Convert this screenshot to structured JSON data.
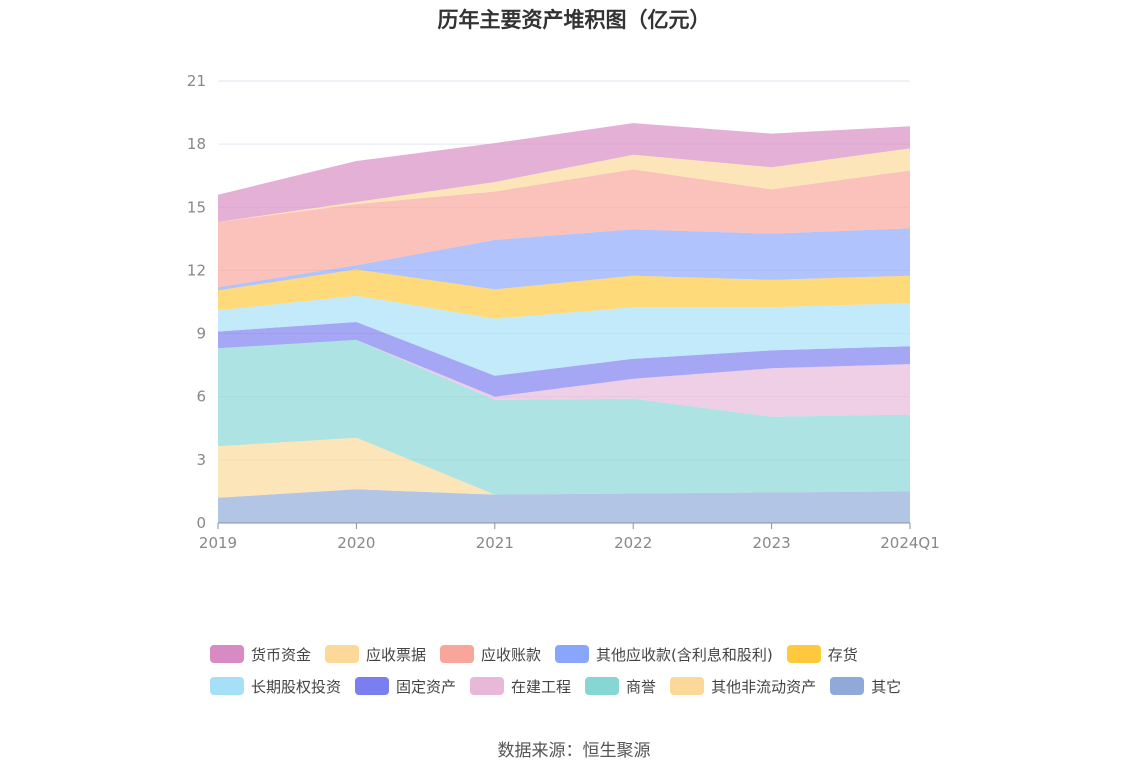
{
  "chart_data": {
    "type": "area",
    "stacked": true,
    "title": "历年主要资产堆积图（亿元）",
    "x": [
      "2019",
      "2020",
      "2021",
      "2022",
      "2023",
      "2024Q1"
    ],
    "yticks": [
      "0",
      "3",
      "6",
      "9",
      "12",
      "15",
      "18",
      "21"
    ],
    "ylim": [
      0,
      21
    ],
    "grid": true,
    "legend_position": "bottom",
    "series": [
      {
        "name": "其它",
        "color": "#8fa9d8",
        "values": [
          1.2,
          1.6,
          1.35,
          1.4,
          1.45,
          1.5
        ]
      },
      {
        "name": "其他非流动资产",
        "color": "#fcd999",
        "values": [
          2.45,
          2.45,
          0.0,
          0.0,
          0.0,
          0.0
        ]
      },
      {
        "name": "商誉",
        "color": "#86d6d4",
        "values": [
          4.65,
          4.65,
          4.5,
          4.5,
          3.6,
          3.65
        ]
      },
      {
        "name": "在建工程",
        "color": "#e8b8d8",
        "values": [
          0.0,
          0.0,
          0.15,
          0.95,
          2.3,
          2.4
        ]
      },
      {
        "name": "固定资产",
        "color": "#7b7ef0",
        "values": [
          0.8,
          0.85,
          1.0,
          0.95,
          0.85,
          0.85
        ]
      },
      {
        "name": "长期股权投资",
        "color": "#a5e0f7",
        "values": [
          1.0,
          1.25,
          2.7,
          2.45,
          2.05,
          2.05
        ]
      },
      {
        "name": "存货",
        "color": "#ffc83d",
        "values": [
          0.95,
          1.25,
          1.4,
          1.5,
          1.3,
          1.3
        ]
      },
      {
        "name": "其他应收款(含利息和股利)",
        "color": "#8aa6fb",
        "values": [
          0.15,
          0.2,
          2.35,
          2.2,
          2.2,
          2.25
        ]
      },
      {
        "name": "应收账款",
        "color": "#f8a59a",
        "values": [
          3.1,
          2.9,
          2.3,
          2.85,
          2.1,
          2.75
        ]
      },
      {
        "name": "应收票据",
        "color": "#fcd999",
        "values": [
          0.0,
          0.1,
          0.45,
          0.7,
          1.05,
          1.05
        ]
      },
      {
        "name": "货币资金",
        "color": "#d88bc2",
        "values": [
          1.3,
          1.95,
          1.85,
          1.5,
          1.6,
          1.05
        ]
      }
    ]
  },
  "legend_order": [
    "货币资金",
    "应收票据",
    "应收账款",
    "其他应收款(含利息和股利)",
    "存货",
    "长期股权投资",
    "固定资产",
    "在建工程",
    "商誉",
    "其他非流动资产",
    "其它"
  ],
  "source": "数据来源：恒生聚源"
}
